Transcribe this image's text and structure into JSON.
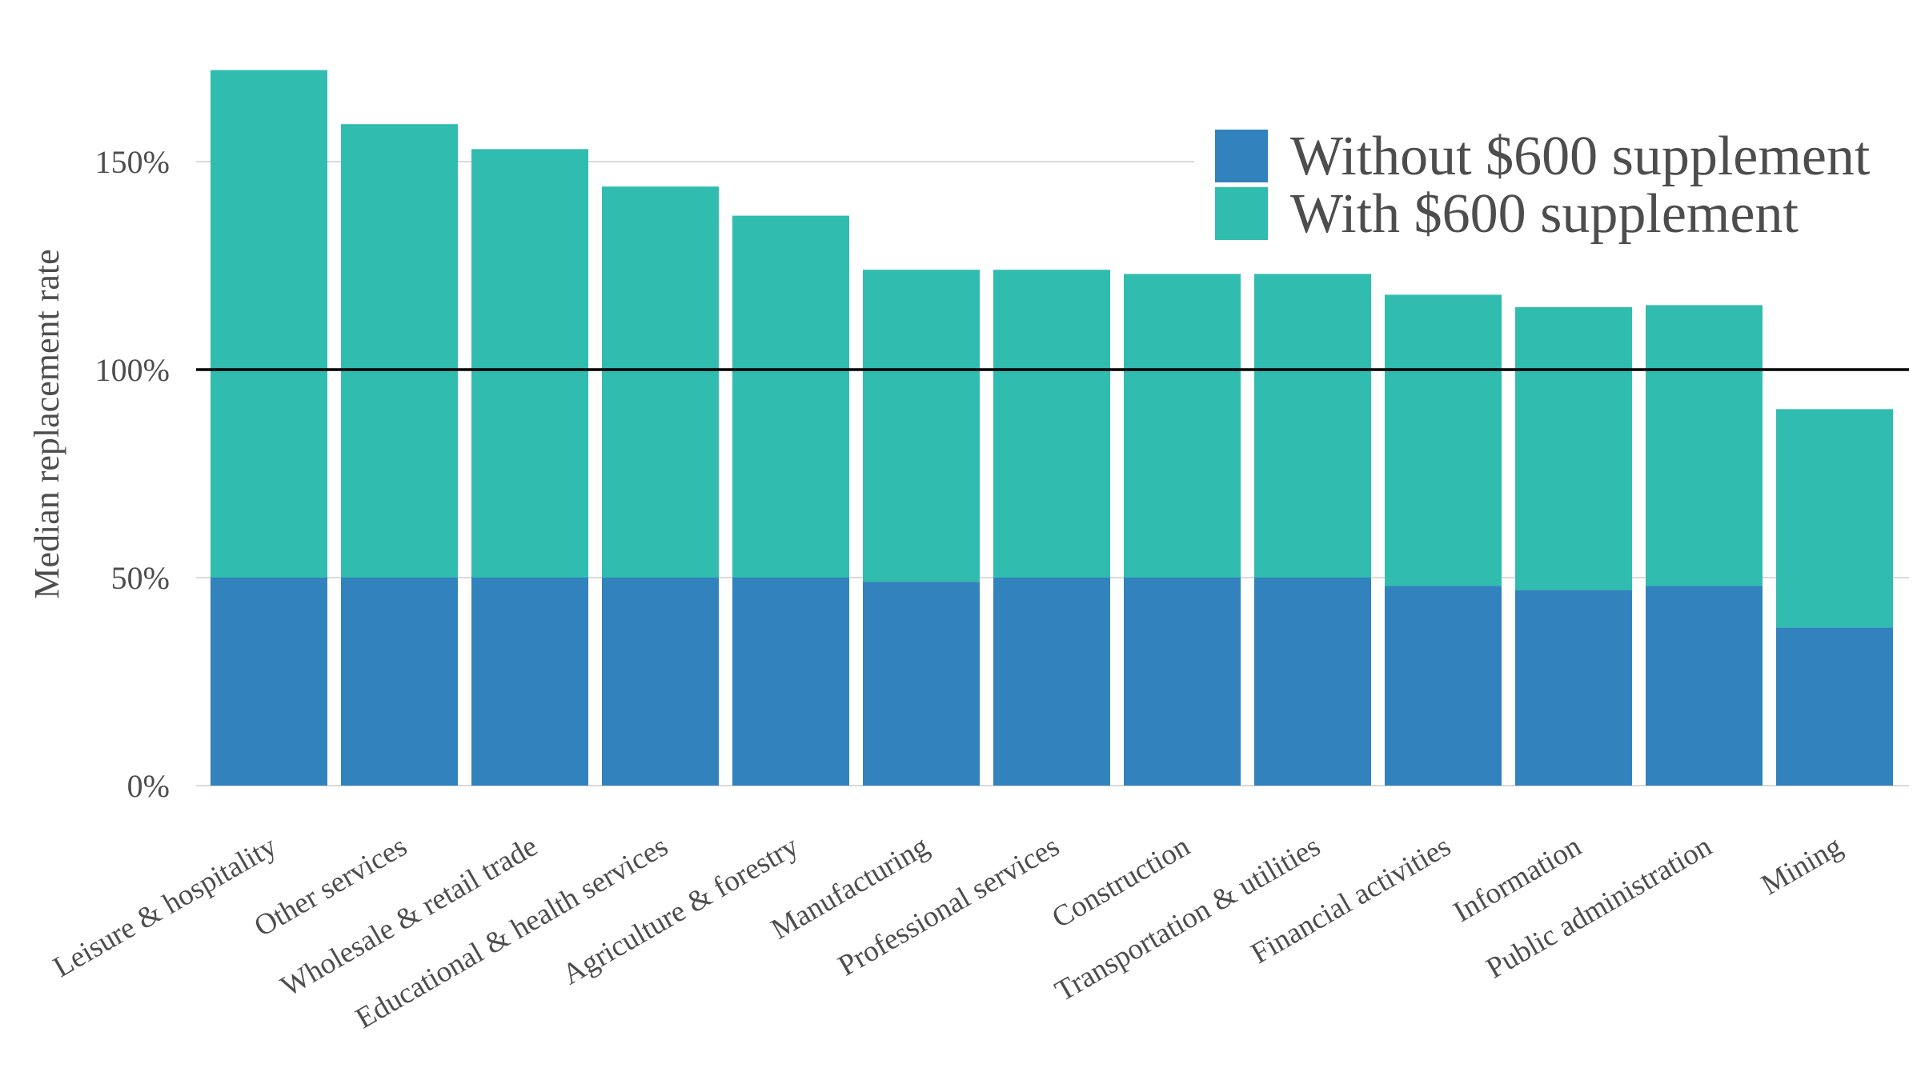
{
  "chart_data": {
    "type": "bar",
    "stacked": true,
    "categories": [
      "Leisure & hospitality",
      "Other services",
      "Wholesale & retail trade",
      "Educational & health services",
      "Agriculture & forestry",
      "Manufacturing",
      "Professional services",
      "Construction",
      "Transportation & utilities",
      "Financial activities",
      "Information",
      "Public administration",
      "Mining"
    ],
    "series": [
      {
        "name": "Without $600 supplement",
        "color": "#3182bd",
        "values": [
          50,
          50,
          50,
          50,
          50,
          49,
          50,
          50,
          50,
          48,
          47,
          48,
          38
        ]
      },
      {
        "name": "With $600 supplement",
        "color": "#31bcb0",
        "values": [
          122,
          109,
          103,
          94,
          87,
          75,
          74,
          73,
          73,
          70,
          68,
          67.5,
          52.5
        ]
      }
    ],
    "totals": [
      172,
      159,
      153,
      144,
      137,
      124,
      124,
      123,
      123,
      118,
      115,
      115.5,
      90.5
    ],
    "ylabel": "Median replacement rate",
    "xlabel": "",
    "yticks": [
      {
        "value": 0,
        "label": "0%"
      },
      {
        "value": 50,
        "label": "50%"
      },
      {
        "value": 100,
        "label": "100%"
      },
      {
        "value": 150,
        "label": "150%"
      }
    ],
    "ylim": [
      0,
      180
    ],
    "reference_line": 100,
    "grid": true,
    "legend_position": "top-right"
  }
}
